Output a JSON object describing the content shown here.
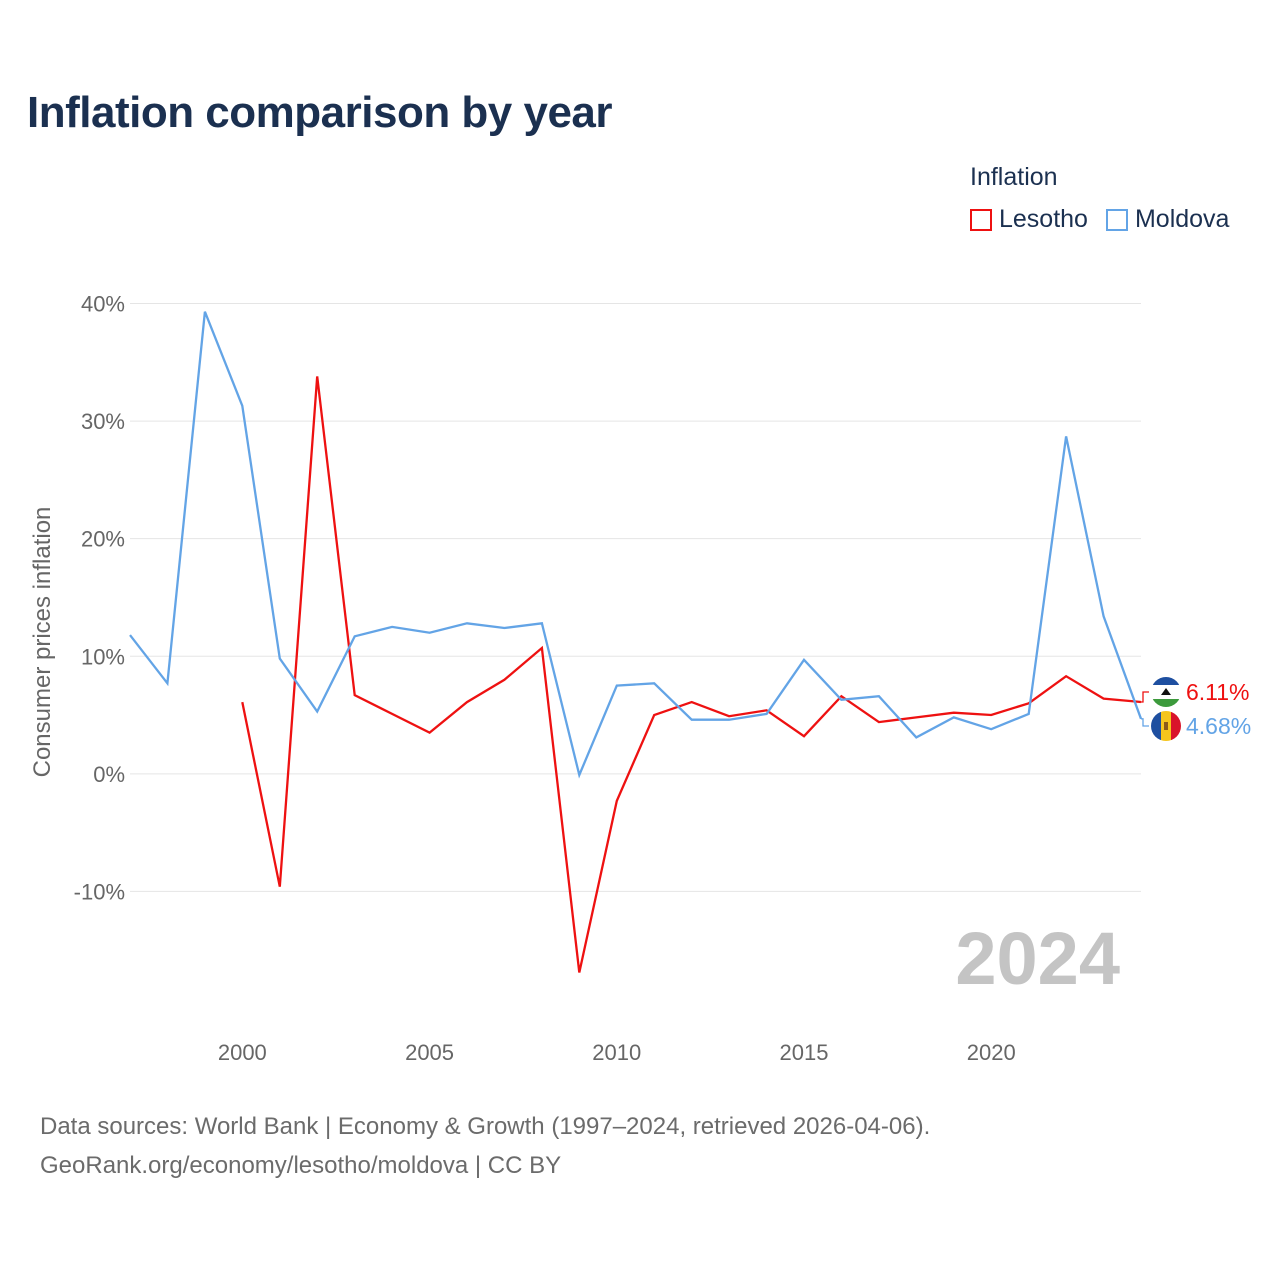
{
  "title": "Inflation comparison by year",
  "legend": {
    "title": "Inflation",
    "items": [
      {
        "name": "Lesotho",
        "color": "#ee1111"
      },
      {
        "name": "Moldova",
        "color": "#63a4e6"
      }
    ]
  },
  "footer": {
    "line1": "Data sources: World Bank | Economy & Growth (1997–2024, retrieved 2026-04-06).",
    "line2": "GeoRank.org/economy/lesotho/moldova | CC BY"
  },
  "chart_data": {
    "type": "line",
    "title": "Inflation comparison by year",
    "ylabel": "Consumer prices inflation",
    "xlabel": "",
    "xlim": [
      1997,
      2024
    ],
    "ylim": [
      -20,
      40
    ],
    "x_ticks": [
      "2000",
      "2005",
      "2010",
      "2015",
      "2020"
    ],
    "y_ticks": [
      "40%",
      "30%",
      "20%",
      "10%",
      "0%",
      "-10%"
    ],
    "year_label": "2024",
    "grid": true,
    "legend_position": "top-right",
    "series": [
      {
        "name": "Lesotho",
        "color": "#ee1111",
        "end_label": "6.11%",
        "x": [
          2000,
          2001,
          2002,
          2003,
          2004,
          2005,
          2006,
          2007,
          2008,
          2009,
          2010,
          2011,
          2012,
          2013,
          2014,
          2015,
          2016,
          2017,
          2018,
          2019,
          2020,
          2021,
          2022,
          2023,
          2024
        ],
        "values": [
          6.1,
          -9.6,
          33.8,
          6.7,
          5.1,
          3.5,
          6.1,
          8.0,
          10.7,
          -16.9,
          -2.3,
          5.0,
          6.1,
          4.9,
          5.4,
          3.2,
          6.6,
          4.4,
          4.8,
          5.2,
          5.0,
          6.0,
          8.3,
          6.4,
          6.11
        ]
      },
      {
        "name": "Moldova",
        "color": "#63a4e6",
        "end_label": "4.68%",
        "x": [
          1997,
          1998,
          1999,
          2000,
          2001,
          2002,
          2003,
          2004,
          2005,
          2006,
          2007,
          2008,
          2009,
          2010,
          2011,
          2012,
          2013,
          2014,
          2015,
          2016,
          2017,
          2018,
          2019,
          2020,
          2021,
          2022,
          2023,
          2024
        ],
        "values": [
          11.8,
          7.7,
          39.3,
          31.3,
          9.8,
          5.3,
          11.7,
          12.5,
          12.0,
          12.8,
          12.4,
          12.8,
          -0.1,
          7.5,
          7.7,
          4.6,
          4.6,
          5.1,
          9.7,
          6.3,
          6.6,
          3.1,
          4.8,
          3.8,
          5.1,
          28.7,
          13.4,
          4.68
        ]
      }
    ]
  }
}
